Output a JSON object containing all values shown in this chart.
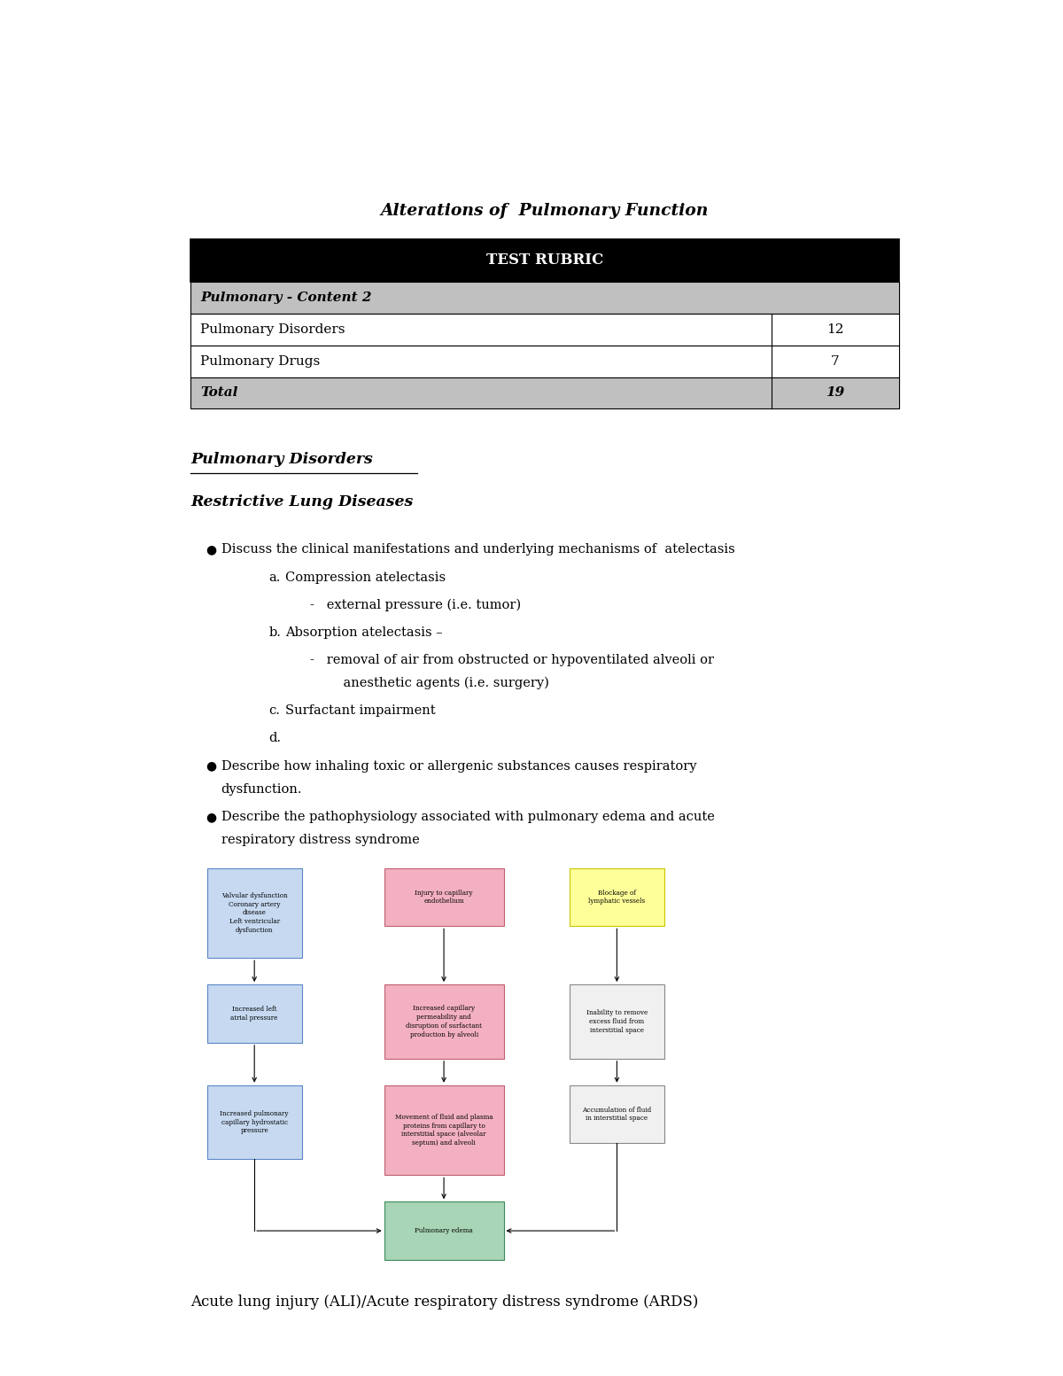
{
  "title": "Alterations of  Pulmonary Function",
  "bg_color": "#ffffff",
  "table_header": "TEST RUBRIC",
  "table_header_bg": "#000000",
  "table_header_fg": "#ffffff",
  "table_rows": [
    {
      "label": "Pulmonary - Content 2",
      "value": "",
      "bg": "#c0c0c0",
      "italic": true,
      "bold": true
    },
    {
      "label": "Pulmonary Disorders",
      "value": "12",
      "bg": "#ffffff",
      "italic": false,
      "bold": false
    },
    {
      "label": "Pulmonary Drugs",
      "value": "7",
      "bg": "#ffffff",
      "italic": false,
      "bold": false
    },
    {
      "label": "Total",
      "value": "19",
      "bg": "#c0c0c0",
      "italic": true,
      "bold": true
    }
  ],
  "section1_heading": "Pulmonary Disorders",
  "section2_heading": "Restrictive Lung Diseases",
  "bullets": [
    {
      "text": "Discuss the clinical manifestations and underlying mechanisms of  atelectasis",
      "subitems": [
        {
          "label": "a.",
          "text": "Compression atelectasis",
          "sub": [
            {
              "text": "-   external pressure (i.e. tumor)"
            }
          ]
        },
        {
          "label": "b.",
          "text": "Absorption atelectasis –",
          "sub": [
            {
              "text": "-   removal of air from obstructed or hypoventilated alveoli or\n    anesthetic agents (i.e. surgery)"
            }
          ]
        },
        {
          "label": "c.",
          "text": "Surfactant impairment",
          "sub": []
        },
        {
          "label": "d.",
          "text": "",
          "sub": []
        }
      ]
    },
    {
      "text": "Describe how inhaling toxic or allergenic substances causes respiratory\ndysfunction.",
      "subitems": []
    },
    {
      "text": "Describe the pathophysiology associated with pulmonary edema and acute\nrespiratory distress syndrome",
      "subitems": []
    }
  ],
  "diagram_boxes": [
    {
      "id": "box1",
      "text": "Valvular dysfunction\nCoronary artery\ndisease\nLeft ventricular\ndysfunction",
      "color": "#c6d9f1",
      "border": "#4a86c8"
    },
    {
      "id": "box2",
      "text": "Injury to capillary\nendothelium",
      "color": "#f2b8c6",
      "border": "#c0607a"
    },
    {
      "id": "box3",
      "text": "Blockage of\nlymphatic vessels",
      "color": "#ffff99",
      "border": "#c8c800"
    },
    {
      "id": "box4",
      "text": "Increased left\natrial pressure",
      "color": "#c6d9f1",
      "border": "#4a86c8"
    },
    {
      "id": "box5",
      "text": "Increased capillary\npermeability and\ndisruption of surfactant\nproduction by alveoli",
      "color": "#f2b8c6",
      "border": "#c0607a"
    },
    {
      "id": "box6",
      "text": "Inability to remove\nexcess fluid from\ninterstitial space",
      "color": "#f0f0f0",
      "border": "#888888"
    },
    {
      "id": "box7",
      "text": "Increased pulmonary\ncapillary hydrostatic\npressure",
      "color": "#c6d9f1",
      "border": "#4a86c8"
    },
    {
      "id": "box8",
      "text": "Movement of fluid and plasma\nproteins from capillary to\ninterstitial space (alveolar\nseptum) and alveoli",
      "color": "#f2b8c6",
      "border": "#c0607a"
    },
    {
      "id": "box9",
      "text": "Accumulation of fluid\nin interstitial space",
      "color": "#f0f0f0",
      "border": "#888888"
    },
    {
      "id": "box10",
      "text": "Pulmonary edema",
      "color": "#a8d5b5",
      "border": "#3a8a5a"
    }
  ],
  "ards_text": "Acute lung injury (ALI)/Acute respiratory distress syndrome (ARDS)",
  "font_family": "DejaVu Serif"
}
